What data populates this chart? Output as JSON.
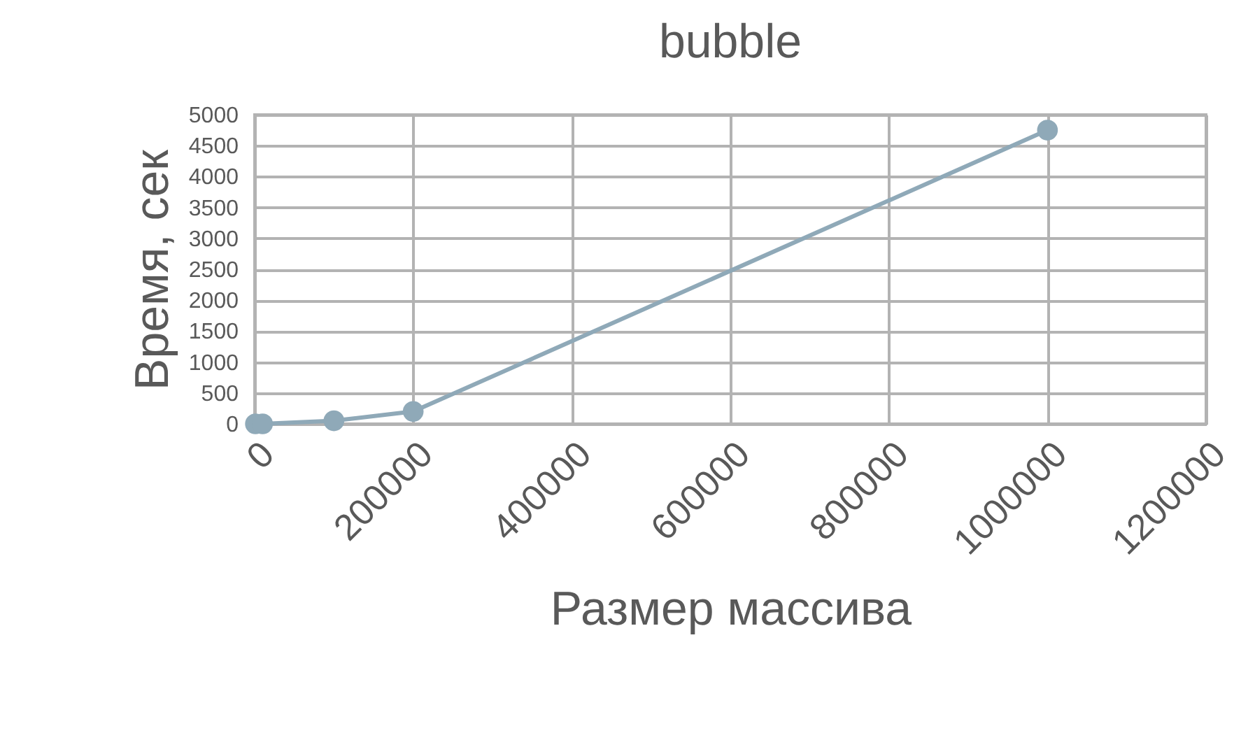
{
  "chart_data": {
    "type": "line",
    "title": "bubble",
    "xlabel": "Размер массива",
    "ylabel": "Время, сек",
    "x": [
      1000,
      10000,
      100000,
      200000,
      1000000
    ],
    "series": [
      {
        "color": "#8fa9b8",
        "values": [
          0,
          0,
          50,
          200,
          4750
        ]
      }
    ],
    "xlim": [
      0,
      1200000
    ],
    "xticks": [
      0,
      200000,
      400000,
      600000,
      800000,
      1000000,
      1200000
    ],
    "ylim": [
      0,
      5000
    ],
    "yticks": [
      0,
      500,
      1000,
      1500,
      2000,
      2500,
      3000,
      3500,
      4000,
      4500,
      5000
    ],
    "grid": true,
    "marker": "circle",
    "line_style": "solid",
    "legend": false
  }
}
